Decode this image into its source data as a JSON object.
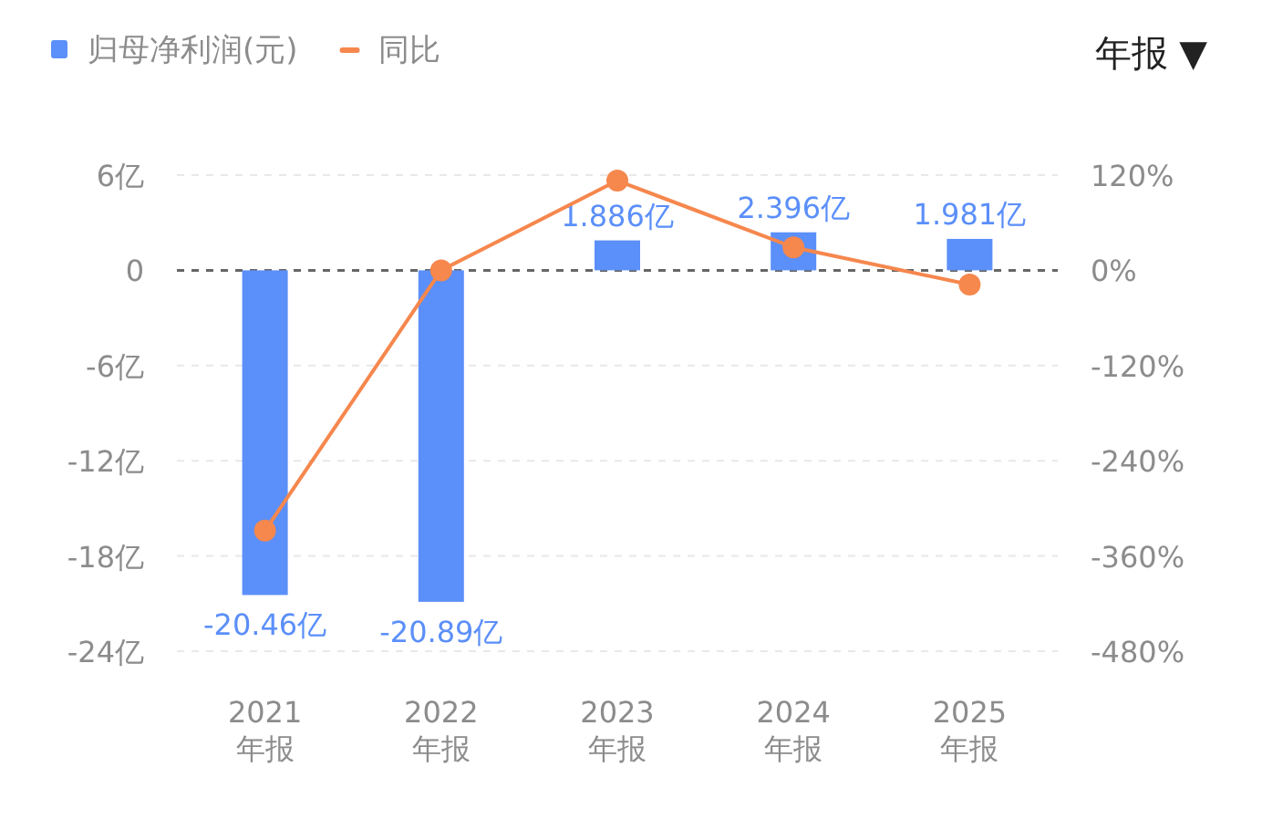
{
  "chart_data": {
    "type": "bar",
    "categories": [
      "2021\n年报",
      "2022\n年报",
      "2023\n年报",
      "2024\n年报",
      "2025\n年报"
    ],
    "series": [
      {
        "name": "归母净利润(元)",
        "color": "#5b8ff9",
        "values": [
          -20.46,
          -20.89,
          1.886,
          2.396,
          1.981
        ],
        "value_labels": [
          "-20.46亿",
          "-20.89亿",
          "1.886亿",
          "2.396亿",
          "1.981亿"
        ]
      },
      {
        "name": "同比",
        "type": "line",
        "axis": "y2",
        "color": "#f6874d",
        "marker": "circle",
        "values": [
          -328,
          0,
          113,
          29,
          -18
        ]
      }
    ],
    "ylim": [
      -24,
      6
    ],
    "yticks": [
      {
        "value": 6,
        "label": "6亿"
      },
      {
        "value": 0,
        "label": "0"
      },
      {
        "value": -6,
        "label": "-6亿"
      },
      {
        "value": -12,
        "label": "-12亿"
      },
      {
        "value": -18,
        "label": "-18亿"
      },
      {
        "value": -24,
        "label": "-24亿"
      }
    ],
    "y2lim": [
      -480,
      120
    ],
    "y2ticks": [
      {
        "value": 120,
        "label": "120%"
      },
      {
        "value": 0,
        "label": "0%"
      },
      {
        "value": -120,
        "label": "-120%"
      },
      {
        "value": -240,
        "label": "-240%"
      },
      {
        "value": -360,
        "label": "-360%"
      },
      {
        "value": -480,
        "label": "-480%"
      }
    ],
    "grid": "y",
    "legend": "top left",
    "ref_lines": [
      {
        "axis": "y",
        "value": 0,
        "color": "#666666",
        "line_style": "dashed"
      }
    ],
    "annotations": [
      "年报 ▼"
    ]
  }
}
